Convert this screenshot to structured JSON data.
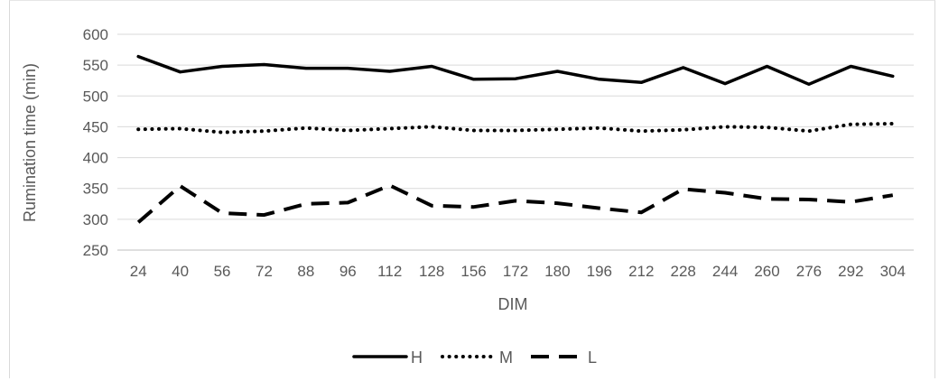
{
  "chart_data": {
    "type": "line",
    "title": "",
    "xlabel": "DIM",
    "ylabel": "Rumination time (min)",
    "categories": [
      "24",
      "40",
      "56",
      "72",
      "88",
      "96",
      "112",
      "128",
      "156",
      "172",
      "180",
      "196",
      "212",
      "228",
      "244",
      "260",
      "276",
      "292",
      "304"
    ],
    "ylim": [
      250,
      600
    ],
    "yticks": [
      "250",
      "300",
      "350",
      "400",
      "450",
      "500",
      "550",
      "600"
    ],
    "grid": true,
    "legend_position": "bottom",
    "series": [
      {
        "name": "H",
        "style": "solid",
        "color": "#000000",
        "values": [
          564,
          539,
          548,
          551,
          545,
          545,
          540,
          548,
          527,
          528,
          540,
          527,
          522,
          546,
          520,
          548,
          519,
          548,
          532
        ]
      },
      {
        "name": "M",
        "style": "dotted",
        "color": "#000000",
        "values": [
          446,
          447,
          441,
          443,
          448,
          444,
          447,
          450,
          444,
          444,
          446,
          448,
          443,
          445,
          450,
          449,
          443,
          454,
          455
        ]
      },
      {
        "name": "L",
        "style": "dashed",
        "color": "#000000",
        "values": [
          295,
          354,
          310,
          307,
          325,
          327,
          355,
          322,
          320,
          330,
          326,
          318,
          311,
          349,
          343,
          333,
          332,
          328,
          339
        ]
      }
    ]
  }
}
